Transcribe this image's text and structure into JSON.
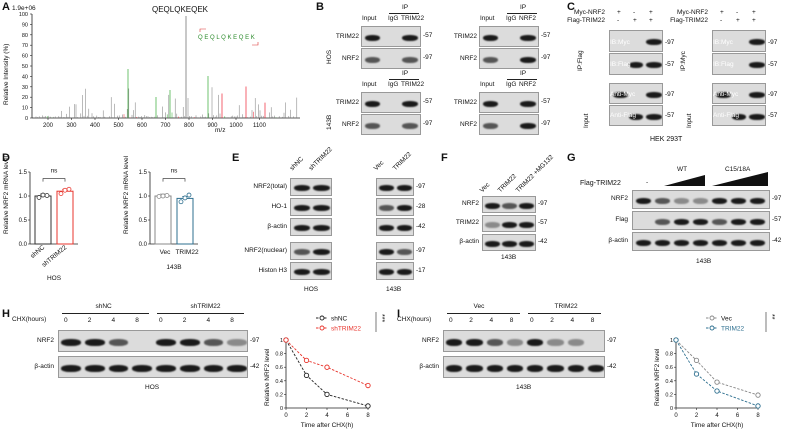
{
  "panels": {
    "A": "A",
    "B": "B",
    "C": "C",
    "D": "D",
    "E": "E",
    "F": "F",
    "G": "G",
    "H": "H",
    "I": "I"
  },
  "A": {
    "yscale": "1.9e+06",
    "peptide": "QEQLQKEQEK",
    "ylabel": "Relative Intensity (%)",
    "xlabel": "m/z",
    "yticks": [
      "100",
      "90",
      "80",
      "70",
      "60",
      "50",
      "40",
      "30",
      "20",
      "10",
      "0"
    ],
    "xticks": [
      "200",
      "300",
      "400",
      "500",
      "600",
      "700",
      "800",
      "900",
      "1000",
      "1100"
    ]
  },
  "B": {
    "ip": "IP",
    "input": "Input",
    "igg": "IgG",
    "trim22": "TRIM22",
    "nrf2": "NRF2",
    "hos": "HOS",
    "c143b": "143B",
    "mw57": "-57",
    "mw97": "-97"
  },
  "C": {
    "myc_nrf2": "Myc-NRF2",
    "flag_trim22": "Flag-TRIM22",
    "signs_row1": [
      "+",
      "-",
      "+"
    ],
    "signs_row2": [
      "-",
      "+",
      "+"
    ],
    "ip_flag": "IP:Flag",
    "ip_myc": "IP:Myc",
    "ib_myc": "IB:Myc",
    "ib_flag": "IB:Flag",
    "input": "Input",
    "anti_myc": "Anti-Myc",
    "anti_flag": "Anti-Flag",
    "cell": "HEK 293T",
    "mw97": "-97",
    "mw57": "-57"
  },
  "D": {
    "ylabel": "Relative NRF2 mRNA level",
    "ns": "ns",
    "left_cats": [
      "shNC",
      "shTRIM22"
    ],
    "right_cats": [
      "Vec",
      "TRIM22"
    ],
    "left_cell": "HOS",
    "right_cell": "143B",
    "yticks": [
      "1.5",
      "1.0",
      "0.5",
      "0.0"
    ]
  },
  "E": {
    "left_cols": [
      "shNC",
      "shTRIM22"
    ],
    "right_cols": [
      "Vec",
      "TRIM22"
    ],
    "rows": [
      "NRF2(total)",
      "HO-1",
      "β-actin",
      "NRF2(nuclear)",
      "Histon H3"
    ],
    "mws": [
      "-97",
      "-28",
      "-42",
      "-97",
      "-17"
    ],
    "left_cell": "HOS",
    "right_cell": "143B"
  },
  "F": {
    "cols": [
      "Vec",
      "TRIM22",
      "TRIM22 +MG132"
    ],
    "rows": [
      "NRF2",
      "TRIM22",
      "β-actin"
    ],
    "mws": [
      "-97",
      "-57",
      "-42"
    ],
    "cell": "143B"
  },
  "G": {
    "flag_trim22": "Flag-TRIM22",
    "dash": "-",
    "wt": "WT",
    "mut": "C15/18A",
    "rows": [
      "NRF2",
      "Flag",
      "β-actin"
    ],
    "mws": [
      "-97",
      "-57",
      "-42"
    ],
    "cell": "143B"
  },
  "H": {
    "chx": "CHX(hours)",
    "groups": [
      "shNC",
      "shTRIM22"
    ],
    "times": [
      "0",
      "2",
      "4",
      "8",
      "0",
      "2",
      "4",
      "8"
    ],
    "rows": [
      "NRF2",
      "β-actin"
    ],
    "mws": [
      "-97",
      "-42"
    ],
    "cell": "HOS"
  },
  "I": {
    "chx": "CHX(hours)",
    "groups": [
      "Vec",
      "TRIM22"
    ],
    "times": [
      "0",
      "2",
      "4",
      "8",
      "0",
      "2",
      "4",
      "8"
    ],
    "rows": [
      "NRF2",
      "β-actin"
    ],
    "mws": [
      "-97",
      "-42"
    ],
    "cell": "143B"
  },
  "chart_data": [
    {
      "type": "bar",
      "panel": "D-left",
      "categories": [
        "shNC",
        "shTRIM22"
      ],
      "values": [
        1.0,
        1.1
      ],
      "points": [
        [
          0.97,
          1.02,
          1.01
        ],
        [
          1.05,
          1.12,
          1.14
        ]
      ],
      "ylabel": "Relative NRF2 mRNA level",
      "xlabel": "HOS",
      "ylim": [
        0,
        1.5
      ],
      "colors": [
        "#333333",
        "#e8342c"
      ],
      "annotation": "ns"
    },
    {
      "type": "bar",
      "panel": "D-right",
      "categories": [
        "Vec",
        "TRIM22"
      ],
      "values": [
        1.0,
        0.95
      ],
      "points": [
        [
          0.99,
          1.0,
          1.01
        ],
        [
          0.88,
          0.96,
          1.02
        ]
      ],
      "ylabel": "Relative NRF2 mRNA level",
      "xlabel": "143B",
      "ylim": [
        0,
        1.5
      ],
      "colors": [
        "#888888",
        "#2d6f8f"
      ],
      "annotation": "ns"
    },
    {
      "type": "line",
      "panel": "H",
      "x": [
        0,
        2,
        4,
        8
      ],
      "series": [
        {
          "name": "shNC",
          "values": [
            1.0,
            0.48,
            0.2,
            0.03
          ],
          "color": "#222222"
        },
        {
          "name": "shTRIM22",
          "values": [
            1.0,
            0.7,
            0.6,
            0.33
          ],
          "color": "#e8342c"
        }
      ],
      "xlabel": "Time after CHX(h)",
      "ylabel": "Relative NRF2 level",
      "ylim": [
        0,
        1.0
      ],
      "xticks": [
        0,
        2,
        4,
        6,
        8
      ],
      "yticks": [
        0.0,
        0.2,
        0.4,
        0.6,
        0.8,
        1.0
      ],
      "annotation": "***",
      "legend": "top-right"
    },
    {
      "type": "line",
      "panel": "I",
      "x": [
        0,
        2,
        4,
        8
      ],
      "series": [
        {
          "name": "Vec",
          "values": [
            1.0,
            0.7,
            0.38,
            0.19
          ],
          "color": "#888888"
        },
        {
          "name": "TRIM22",
          "values": [
            1.0,
            0.5,
            0.25,
            0.03
          ],
          "color": "#2d6f8f"
        }
      ],
      "xlabel": "Time after CHX(h)",
      "ylabel": "Relative NRF2 level",
      "ylim": [
        0,
        1.0
      ],
      "xticks": [
        0,
        2,
        4,
        6,
        8
      ],
      "yticks": [
        0.0,
        0.2,
        0.4,
        0.6,
        0.8,
        1.0
      ],
      "annotation": "**",
      "legend": "top-right"
    }
  ]
}
